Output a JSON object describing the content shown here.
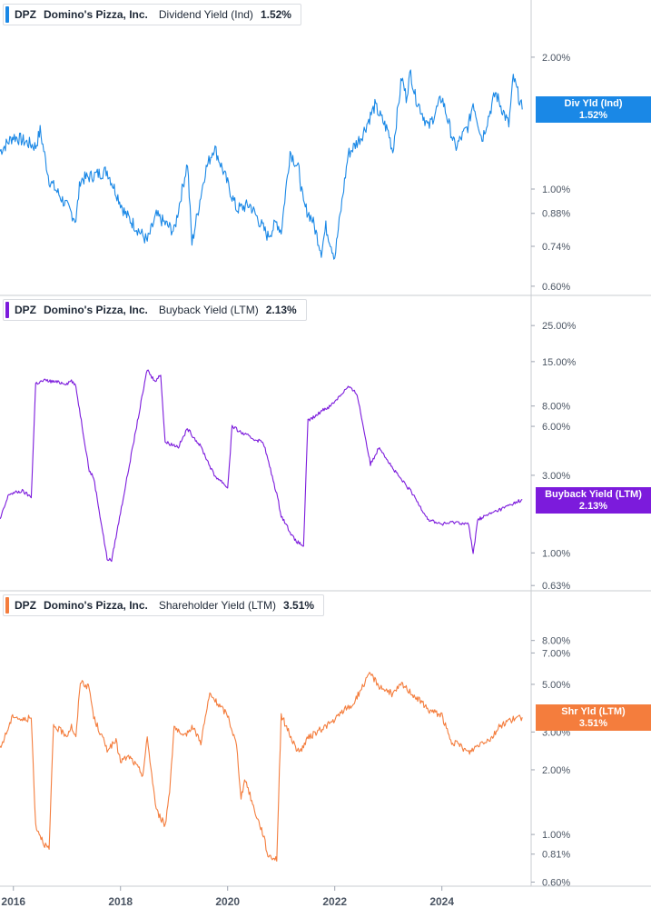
{
  "chart_data": [
    {
      "type": "line",
      "legend": {
        "ticker": "DPZ",
        "company": "Domino's Pizza, Inc.",
        "metric": "Dividend Yield (Ind)",
        "value": "1.52%"
      },
      "value_tag": {
        "line1": "Div Yld (Ind)",
        "line2": "1.52%"
      },
      "color": "#1a88e6",
      "y_scale": "log",
      "ylim": [
        0.58,
        2.6
      ],
      "y_ticks": [
        {
          "v": 2.0,
          "label": "2.00%"
        },
        {
          "v": 1.0,
          "label": "1.00%"
        },
        {
          "v": 0.88,
          "label": "0.88%"
        },
        {
          "v": 0.74,
          "label": "0.74%"
        },
        {
          "v": 0.6,
          "label": "0.60%"
        }
      ],
      "current": 1.52,
      "x": [
        "2015-10",
        "2016-01",
        "2016-06",
        "2016-07",
        "2016-09",
        "2017-03",
        "2017-04",
        "2017-10",
        "2018-02",
        "2018-07",
        "2018-09",
        "2019-01",
        "2019-04",
        "2019-05",
        "2019-08",
        "2019-10",
        "2019-12",
        "2020-03",
        "2020-06",
        "2020-10",
        "2020-12",
        "2021-01",
        "2021-03",
        "2021-05",
        "2021-06",
        "2021-08",
        "2021-10",
        "2021-11",
        "2022-01",
        "2022-04",
        "2022-07",
        "2022-10",
        "2023-01",
        "2023-02",
        "2023-04",
        "2023-05",
        "2023-06",
        "2023-07",
        "2023-10",
        "2024-01",
        "2024-04",
        "2024-07",
        "2024-08",
        "2024-10",
        "2025-01",
        "2025-04",
        "2025-05",
        "2025-07"
      ],
      "values": [
        1.22,
        1.32,
        1.25,
        1.36,
        1.05,
        0.85,
        1.05,
        1.1,
        0.88,
        0.76,
        0.87,
        0.8,
        1.15,
        0.75,
        1.1,
        1.25,
        1.1,
        0.9,
        0.92,
        0.78,
        0.84,
        0.8,
        1.22,
        1.1,
        0.92,
        0.85,
        0.72,
        0.82,
        0.7,
        1.2,
        1.32,
        1.55,
        1.35,
        1.22,
        1.8,
        1.62,
        1.85,
        1.63,
        1.38,
        1.62,
        1.24,
        1.4,
        1.58,
        1.3,
        1.66,
        1.4,
        1.8,
        1.52
      ]
    },
    {
      "type": "line",
      "legend": {
        "ticker": "DPZ",
        "company": "Domino's Pizza, Inc.",
        "metric": "Buyback Yield (LTM)",
        "value": "2.13%"
      },
      "value_tag": {
        "line1": "Buyback Yield (LTM)",
        "line2": "2.13%"
      },
      "color": "#7c1bdc",
      "y_scale": "log",
      "ylim": [
        0.6,
        30
      ],
      "y_ticks": [
        {
          "v": 25,
          "label": "25.00%"
        },
        {
          "v": 15,
          "label": "15.00%"
        },
        {
          "v": 8,
          "label": "8.00%"
        },
        {
          "v": 6,
          "label": "6.00%"
        },
        {
          "v": 3,
          "label": "3.00%"
        },
        {
          "v": 1,
          "label": "1.00%"
        },
        {
          "v": 0.63,
          "label": "0.63%"
        }
      ],
      "current": 2.13,
      "x": [
        "2015-10",
        "2015-12",
        "2016-03",
        "2016-05",
        "2016-06",
        "2016-08",
        "2017-01",
        "2017-02",
        "2017-03",
        "2017-06",
        "2017-07",
        "2017-10",
        "2017-11",
        "2018-07",
        "2018-08",
        "2018-09",
        "2018-10",
        "2018-11",
        "2019-02",
        "2019-04",
        "2019-07",
        "2019-10",
        "2019-12",
        "2020-01",
        "2020-02",
        "2020-04",
        "2020-07",
        "2020-09",
        "2020-12",
        "2021-01",
        "2021-04",
        "2021-06",
        "2021-07",
        "2021-09",
        "2021-10",
        "2021-12",
        "2022-04",
        "2022-06",
        "2022-09",
        "2022-11",
        "2023-02",
        "2023-04",
        "2023-06",
        "2023-10",
        "2024-01",
        "2024-04",
        "2024-07",
        "2024-08",
        "2024-09",
        "2024-12",
        "2025-03",
        "2025-07"
      ],
      "values": [
        1.6,
        2.3,
        2.4,
        2.2,
        11.0,
        11.5,
        11.0,
        11.5,
        10.5,
        3.2,
        2.9,
        0.92,
        0.9,
        13.5,
        12.0,
        11.5,
        12.5,
        4.8,
        4.5,
        5.8,
        4.5,
        3.0,
        2.7,
        2.5,
        6.0,
        5.5,
        5.0,
        4.8,
        2.3,
        1.7,
        1.2,
        1.1,
        6.5,
        7.0,
        7.5,
        8.0,
        10.5,
        9.5,
        3.5,
        4.5,
        3.3,
        2.8,
        2.4,
        1.6,
        1.5,
        1.55,
        1.5,
        0.98,
        1.6,
        1.75,
        1.9,
        2.13
      ]
    },
    {
      "type": "line",
      "legend": {
        "ticker": "DPZ",
        "company": "Domino's Pizza, Inc.",
        "metric": "Shareholder Yield (LTM)",
        "value": "3.51%"
      },
      "value_tag": {
        "line1": "Shr Yld (LTM)",
        "line2": "3.51%"
      },
      "color": "#f47d3d",
      "y_scale": "log",
      "ylim": [
        0.58,
        11
      ],
      "y_ticks": [
        {
          "v": 8,
          "label": "8.00%"
        },
        {
          "v": 7,
          "label": "7.00%"
        },
        {
          "v": 5,
          "label": "5.00%"
        },
        {
          "v": 3,
          "label": "3.00%"
        },
        {
          "v": 2,
          "label": "2.00%"
        },
        {
          "v": 1,
          "label": "1.00%"
        },
        {
          "v": 0.81,
          "label": "0.81%"
        },
        {
          "v": 0.6,
          "label": "0.60%"
        }
      ],
      "current": 3.51,
      "x": [
        "2015-10",
        "2016-01",
        "2016-03",
        "2016-05",
        "2016-06",
        "2016-08",
        "2016-09",
        "2016-10",
        "2017-01",
        "2017-02",
        "2017-03",
        "2017-04",
        "2017-06",
        "2017-07",
        "2017-10",
        "2017-12",
        "2018-01",
        "2018-03",
        "2018-06",
        "2018-07",
        "2018-09",
        "2018-11",
        "2018-12",
        "2019-01",
        "2019-03",
        "2019-05",
        "2019-07",
        "2019-09",
        "2019-11",
        "2020-01",
        "2020-03",
        "2020-04",
        "2020-05",
        "2020-07",
        "2020-09",
        "2020-10",
        "2020-12",
        "2021-01",
        "2021-04",
        "2021-05",
        "2021-07",
        "2021-09",
        "2021-11",
        "2022-01",
        "2022-03",
        "2022-05",
        "2022-07",
        "2022-09",
        "2022-11",
        "2023-02",
        "2023-04",
        "2023-06",
        "2023-08",
        "2023-10",
        "2024-01",
        "2024-03",
        "2024-05",
        "2024-07",
        "2024-08",
        "2024-10",
        "2024-12",
        "2025-02",
        "2025-04",
        "2025-07"
      ],
      "values": [
        2.5,
        3.6,
        3.4,
        3.5,
        1.1,
        0.9,
        0.85,
        3.2,
        2.9,
        3.2,
        2.8,
        5.2,
        4.8,
        3.5,
        2.5,
        2.7,
        2.2,
        2.3,
        1.9,
        2.8,
        1.3,
        1.1,
        1.6,
        3.2,
        2.8,
        3.2,
        2.7,
        4.5,
        4.0,
        3.6,
        2.6,
        1.5,
        1.8,
        1.3,
        1.0,
        0.8,
        0.77,
        3.6,
        2.6,
        2.4,
        2.8,
        3.0,
        3.2,
        3.4,
        3.8,
        4.0,
        4.8,
        5.6,
        4.9,
        4.5,
        5.0,
        4.6,
        4.2,
        3.8,
        3.6,
        2.7,
        2.6,
        2.4,
        2.5,
        2.7,
        2.8,
        3.2,
        3.4,
        3.51
      ]
    }
  ],
  "x_axis": {
    "ticks": [
      {
        "date": "2016-01",
        "label": "2016"
      },
      {
        "date": "2018-01",
        "label": "2018"
      },
      {
        "date": "2020-01",
        "label": "2020"
      },
      {
        "date": "2022-01",
        "label": "2022"
      },
      {
        "date": "2024-01",
        "label": "2024"
      }
    ]
  }
}
